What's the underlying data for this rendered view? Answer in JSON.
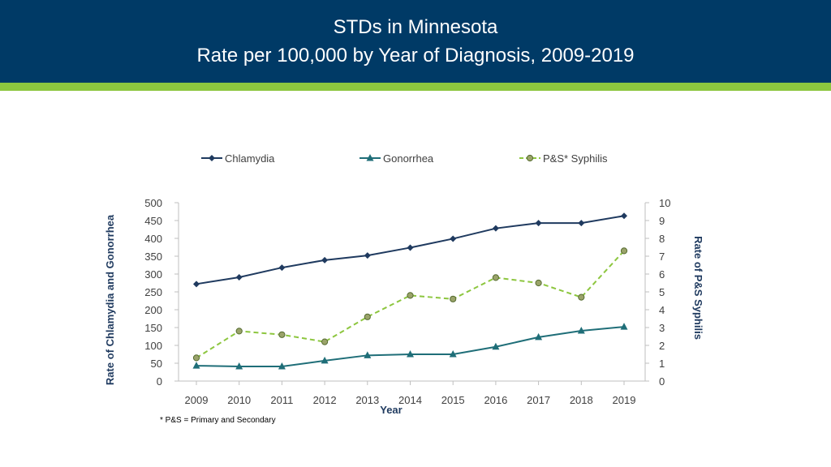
{
  "header": {
    "title_line1": "STDs in Minnesota",
    "title_line2": "Rate per 100,000 by Year of Diagnosis, 2009-2019"
  },
  "colors": {
    "header_bg": "#003a66",
    "stripe": "#8dc63f",
    "chlamydia": "#1f3a5f",
    "gonorrhea": "#1f6e78",
    "syphilis": "#8dc63f"
  },
  "chart_data": {
    "type": "line",
    "title": "",
    "categories": [
      "2009",
      "2010",
      "2011",
      "2012",
      "2013",
      "2014",
      "2015",
      "2016",
      "2017",
      "2018",
      "2019"
    ],
    "xlabel": "Year",
    "ylabel": "Rate of Chlamydia and Gonorrhea",
    "ylabel_right": "Rate of P&S Syphilis",
    "ylim": [
      0,
      500
    ],
    "ylim_right": [
      0,
      10
    ],
    "yticks": [
      "0",
      "50",
      "100",
      "150",
      "200",
      "250",
      "300",
      "350",
      "400",
      "450",
      "500"
    ],
    "yticks_right": [
      "0",
      "1",
      "2",
      "3",
      "4",
      "5",
      "6",
      "7",
      "8",
      "9",
      "10"
    ],
    "legend_position": "top",
    "footnote": "* P&S = Primary and Secondary",
    "series": [
      {
        "name": "Chlamydia",
        "axis": "left",
        "marker": "diamond",
        "style": "solid",
        "values": [
          272,
          291,
          318,
          339,
          352,
          374,
          399,
          428,
          443,
          443,
          463
        ]
      },
      {
        "name": "Gonorrhea",
        "axis": "left",
        "marker": "triangle",
        "style": "solid",
        "values": [
          43,
          41,
          41,
          57,
          72,
          75,
          75,
          96,
          123,
          141,
          152
        ]
      },
      {
        "name": "P&S* Syphilis",
        "axis": "right",
        "marker": "circle",
        "style": "dashed",
        "values": [
          1.3,
          2.8,
          2.6,
          2.2,
          3.6,
          4.8,
          4.6,
          5.8,
          5.5,
          4.7,
          7.3
        ]
      }
    ]
  }
}
